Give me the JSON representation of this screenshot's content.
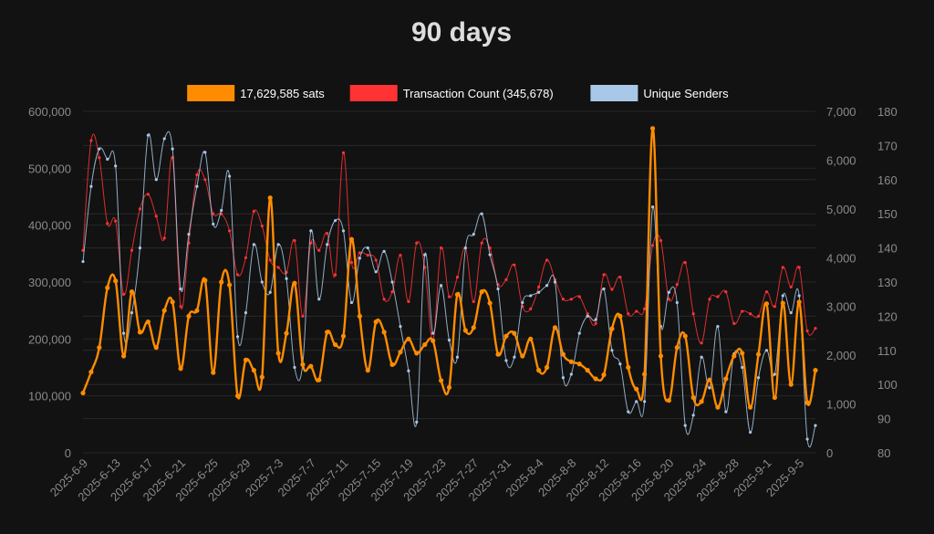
{
  "chart_data": {
    "type": "line",
    "title": "90 days",
    "colors": {
      "background": "#121212",
      "grid": "#2a2a2a",
      "axis_text": "#8a8a8a",
      "title": "#dddddd",
      "legend_text": "#ffffff"
    },
    "legend": {
      "position": "top-center",
      "entries": [
        {
          "label": "17,629,585 sats",
          "color": "#ff8c00"
        },
        {
          "label": "Transaction Count (345,678)",
          "color": "#ff3333"
        },
        {
          "label": "Unique Senders",
          "color": "#a8c8e8"
        }
      ]
    },
    "axes": {
      "y_left": {
        "min": 0,
        "max": 600000,
        "ticks": [
          "600,000",
          "500,000",
          "400,000",
          "300,000",
          "200,000",
          "100,000",
          "0"
        ]
      },
      "y_right1": {
        "min": 0,
        "max": 7000,
        "ticks": [
          "7,000",
          "6,000",
          "5,000",
          "4,000",
          "3,000",
          "2,000",
          "1,000",
          "0"
        ]
      },
      "y_right2": {
        "min": 80,
        "max": 180,
        "ticks": [
          "180",
          "170",
          "160",
          "150",
          "140",
          "130",
          "120",
          "110",
          "100",
          "90",
          "80"
        ]
      }
    },
    "x_tick_labels": [
      "2025-6-9",
      "2025-6-13",
      "2025-6-17",
      "2025-6-21",
      "2025-6-25",
      "2025-6-29",
      "2025-7-3",
      "2025-7-7",
      "2025-7-11",
      "2025-7-15",
      "2025-7-19",
      "2025-7-23",
      "2025-7-27",
      "2025-7-31",
      "2025-8-4",
      "2025-8-8",
      "2025-8-12",
      "2025-8-16",
      "2025-8-20",
      "2025-8-24",
      "2025-8-28",
      "2025-9-1",
      "2025-9-5"
    ],
    "series": [
      {
        "name": "17,629,585 sats",
        "color": "#ff8c00",
        "axis": "y_left",
        "values": [
          105000,
          142000,
          185000,
          290000,
          302000,
          170000,
          283000,
          212000,
          230000,
          185000,
          250000,
          265000,
          148000,
          240000,
          250000,
          303000,
          141000,
          300000,
          295000,
          100000,
          163000,
          145000,
          133000,
          448000,
          175000,
          210000,
          298000,
          155000,
          152000,
          128000,
          212000,
          190000,
          205000,
          375000,
          240000,
          145000,
          230000,
          212000,
          155000,
          177000,
          200000,
          175000,
          190000,
          197000,
          127000,
          115000,
          278000,
          215000,
          220000,
          283000,
          263000,
          173000,
          205000,
          210000,
          170000,
          200000,
          145000,
          150000,
          220000,
          173000,
          160000,
          156000,
          145000,
          130000,
          137000,
          218000,
          240000,
          150000,
          112000,
          138000,
          570000,
          170000,
          92000,
          185000,
          205000,
          97000,
          90000,
          128000,
          80000,
          130000,
          170000,
          175000,
          80000,
          173000,
          262000,
          97000,
          263000,
          120000,
          265000,
          88000,
          145000
        ]
      },
      {
        "name": "Transaction Count (345,678)",
        "color": "#ff3333",
        "axis": "y_right1",
        "values": [
          4150,
          6400,
          6050,
          4700,
          4750,
          3250,
          4150,
          5000,
          5300,
          4850,
          4400,
          6050,
          3000,
          4300,
          5700,
          5600,
          4900,
          4900,
          4550,
          3650,
          4000,
          4950,
          4650,
          3950,
          3800,
          3700,
          4350,
          2800,
          4300,
          4150,
          4500,
          3650,
          6150,
          3900,
          4100,
          4050,
          3950,
          3150,
          3300,
          4050,
          3100,
          4300,
          3800,
          2300,
          4200,
          3200,
          3600,
          4200,
          3100,
          4300,
          4200,
          3450,
          3550,
          3850,
          3000,
          2950,
          3400,
          3950,
          3550,
          3150,
          3150,
          3200,
          2850,
          2650,
          3650,
          3350,
          3600,
          2850,
          2900,
          2950,
          4250,
          4350,
          3150,
          3450,
          3900,
          2850,
          2250,
          3150,
          3200,
          3300,
          2650,
          2900,
          2850,
          2800,
          3300,
          3000,
          3800,
          3400,
          3800,
          2500,
          2550
        ]
      },
      {
        "name": "Unique Senders",
        "color": "#a8c8e8",
        "axis": "y_right2",
        "values": [
          136,
          158,
          169,
          166,
          164,
          115,
          121,
          140,
          173,
          160,
          172,
          169,
          128,
          144,
          158,
          168,
          147,
          151,
          161,
          114,
          121,
          141,
          130,
          127,
          141,
          131,
          105,
          106,
          145,
          125,
          141,
          148,
          145,
          124,
          137,
          140,
          133,
          139,
          130,
          117,
          104,
          89,
          138,
          115,
          129,
          113,
          108,
          140,
          144,
          150,
          138,
          128,
          107,
          108,
          124,
          126,
          127,
          129,
          130,
          102,
          103,
          115,
          120,
          119,
          128,
          110,
          106,
          92,
          95,
          95,
          152,
          117,
          127,
          124,
          88,
          91,
          108,
          99,
          117,
          92,
          109,
          105,
          86,
          102,
          110,
          103,
          126,
          121,
          126,
          84,
          88
        ]
      }
    ]
  }
}
